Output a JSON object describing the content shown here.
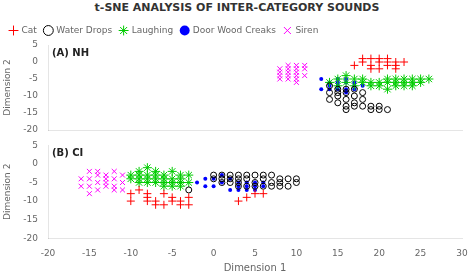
{
  "chart_data": [
    {
      "type": "scatter",
      "title": "t-SNE ANALYSIS OF INTER-CATEGORY SOUNDS",
      "annotations": [
        "(A) NH"
      ],
      "ylabel": "Dimension 2",
      "xlim": [
        -20,
        30
      ],
      "ylim": [
        -20,
        5
      ],
      "xticks": [
        -20,
        -15,
        -10,
        -5,
        0,
        5,
        10,
        15,
        20,
        25,
        30
      ],
      "yticks": [
        -20,
        -15,
        -10,
        -5,
        0,
        5
      ],
      "grid": false,
      "legend": "upper left",
      "tick_labels": "y",
      "series": [
        {
          "name": "Cat",
          "color": "red",
          "marker": "plus",
          "values": [
            [
              18,
              1
            ],
            [
              20,
              1
            ],
            [
              22,
              -1
            ],
            [
              19,
              -1
            ],
            [
              21,
              1
            ],
            [
              20,
              0
            ],
            [
              23,
              0
            ],
            [
              21,
              -1
            ],
            [
              19,
              1
            ],
            [
              22,
              0
            ],
            [
              17,
              -1
            ],
            [
              20,
              -2
            ],
            [
              18,
              0
            ],
            [
              19,
              -2
            ],
            [
              22,
              -2
            ],
            [
              21,
              0
            ]
          ]
        },
        {
          "name": "Water Drops",
          "color": "black",
          "marker": "circle",
          "values": [
            [
              14,
              -7
            ],
            [
              15,
              -8
            ],
            [
              16,
              -9
            ],
            [
              14,
              -9
            ],
            [
              15,
              -10
            ],
            [
              16,
              -11
            ],
            [
              15,
              -12
            ],
            [
              16,
              -13
            ],
            [
              17,
              -10
            ],
            [
              18,
              -11
            ],
            [
              17,
              -12
            ],
            [
              18,
              -13
            ],
            [
              19,
              -13
            ],
            [
              19,
              -14
            ],
            [
              20,
              -13
            ],
            [
              20,
              -14
            ],
            [
              21,
              -14
            ],
            [
              17,
              -8
            ],
            [
              16,
              -8
            ],
            [
              15,
              -9
            ],
            [
              14,
              -11
            ],
            [
              16,
              -14
            ],
            [
              17,
              -13
            ],
            [
              18,
              -9
            ]
          ]
        },
        {
          "name": "Laughing",
          "color": "#00cc00",
          "marker": "star",
          "values": [
            [
              14,
              -6
            ],
            [
              15,
              -5
            ],
            [
              16,
              -4
            ],
            [
              17,
              -5
            ],
            [
              18,
              -6
            ],
            [
              19,
              -7
            ],
            [
              20,
              -6
            ],
            [
              15,
              -7
            ],
            [
              16,
              -6
            ],
            [
              17,
              -7
            ],
            [
              18,
              -5
            ],
            [
              19,
              -6
            ],
            [
              20,
              -7
            ],
            [
              21,
              -6
            ],
            [
              22,
              -5
            ],
            [
              23,
              -6
            ],
            [
              24,
              -5
            ],
            [
              22,
              -7
            ],
            [
              21,
              -8
            ],
            [
              23,
              -7
            ],
            [
              24,
              -6
            ],
            [
              25,
              -5
            ],
            [
              26,
              -5
            ],
            [
              25,
              -6
            ],
            [
              24,
              -7
            ],
            [
              23,
              -5
            ],
            [
              22,
              -6
            ],
            [
              21,
              -5
            ]
          ]
        },
        {
          "name": "Door Wood Creaks",
          "color": "blue",
          "marker": "dot",
          "values": [
            [
              13,
              -5
            ],
            [
              14,
              -6
            ],
            [
              15,
              -7
            ],
            [
              16,
              -6
            ],
            [
              17,
              -7
            ],
            [
              15,
              -6
            ],
            [
              16,
              -5
            ],
            [
              14,
              -7
            ],
            [
              15,
              -8
            ],
            [
              16,
              -9
            ],
            [
              17,
              -8
            ],
            [
              18,
              -7
            ],
            [
              13,
              -8
            ],
            [
              14,
              -8
            ],
            [
              16,
              -8
            ],
            [
              17,
              -6
            ],
            [
              15,
              -5
            ]
          ]
        },
        {
          "name": "Siren",
          "color": "magenta",
          "marker": "x",
          "values": [
            [
              8,
              -2
            ],
            [
              9,
              -1
            ],
            [
              10,
              -1
            ],
            [
              9,
              -3
            ],
            [
              10,
              -4
            ],
            [
              11,
              -2
            ],
            [
              10,
              -2
            ],
            [
              8,
              -4
            ],
            [
              9,
              -5
            ],
            [
              10,
              -6
            ],
            [
              8,
              -3
            ],
            [
              11,
              -1
            ],
            [
              9,
              -2
            ],
            [
              10,
              -3
            ],
            [
              11,
              -4
            ],
            [
              8,
              -5
            ],
            [
              9,
              -4
            ],
            [
              10,
              -5
            ]
          ]
        }
      ]
    },
    {
      "type": "scatter",
      "annotations": [
        "(B) CI"
      ],
      "xlabel": "Dimension 1",
      "ylabel": "Dimension 2",
      "xlim": [
        -20,
        30
      ],
      "ylim": [
        -20,
        5
      ],
      "xticks": [
        -20,
        -15,
        -10,
        -5,
        0,
        5,
        10,
        15,
        20,
        25,
        30
      ],
      "yticks": [
        -20,
        -15,
        -10,
        -5,
        0,
        5
      ],
      "grid": false,
      "series": [
        {
          "name": "Cat",
          "color": "red",
          "marker": "plus",
          "values": [
            [
              -10,
              -8
            ],
            [
              -9,
              -7
            ],
            [
              -8,
              -9
            ],
            [
              -7,
              -10
            ],
            [
              -6,
              -8
            ],
            [
              -5,
              -9
            ],
            [
              -4,
              -11
            ],
            [
              -3,
              -9
            ],
            [
              -7,
              -11
            ],
            [
              -8,
              -10
            ],
            [
              -6,
              -11
            ],
            [
              -5,
              -10
            ],
            [
              -4,
              -10
            ],
            [
              -3,
              -11
            ],
            [
              -10,
              -10
            ],
            [
              -8,
              -8
            ],
            [
              5,
              -8
            ],
            [
              4,
              -9
            ],
            [
              3,
              -10
            ],
            [
              6,
              -8
            ]
          ]
        },
        {
          "name": "Water Drops",
          "color": "black",
          "marker": "circle",
          "values": [
            [
              -3,
              -7
            ],
            [
              0,
              -3
            ],
            [
              1,
              -4
            ],
            [
              2,
              -5
            ],
            [
              3,
              -3
            ],
            [
              4,
              -4
            ],
            [
              5,
              -3
            ],
            [
              3,
              -6
            ],
            [
              2,
              -4
            ],
            [
              1,
              -5
            ],
            [
              0,
              -4
            ],
            [
              4,
              -6
            ],
            [
              5,
              -5
            ],
            [
              3,
              -4
            ],
            [
              2,
              -3
            ],
            [
              1,
              -3
            ],
            [
              6,
              -4
            ],
            [
              7,
              -3
            ],
            [
              7,
              -5
            ],
            [
              6,
              -6
            ],
            [
              7,
              -6
            ],
            [
              8,
              -4
            ],
            [
              8,
              -5
            ],
            [
              6,
              -3
            ],
            [
              5,
              -6
            ],
            [
              4,
              -3
            ],
            [
              3,
              -5
            ],
            [
              8,
              -6
            ],
            [
              9,
              -4
            ],
            [
              9,
              -6
            ],
            [
              10,
              -4
            ],
            [
              10,
              -5
            ]
          ]
        },
        {
          "name": "Laughing",
          "color": "#00cc00",
          "marker": "star",
          "values": [
            [
              -9,
              -2
            ],
            [
              -8,
              -1
            ],
            [
              -7,
              -3
            ],
            [
              -6,
              -4
            ],
            [
              -5,
              -2
            ],
            [
              -4,
              -3
            ],
            [
              -8,
              -4
            ],
            [
              -7,
              -2
            ],
            [
              -6,
              -3
            ],
            [
              -5,
              -4
            ],
            [
              -4,
              -4
            ],
            [
              -3,
              -3
            ],
            [
              -9,
              -4
            ],
            [
              -8,
              -3
            ],
            [
              -7,
              -4
            ],
            [
              -6,
              -5
            ],
            [
              -5,
              -5
            ],
            [
              -4,
              -5
            ],
            [
              -3,
              -5
            ],
            [
              -10,
              -3
            ],
            [
              -9,
              -5
            ],
            [
              -8,
              -5
            ],
            [
              -7,
              -5
            ],
            [
              -6,
              -6
            ],
            [
              -5,
              -6
            ],
            [
              -4,
              -6
            ],
            [
              -10,
              -4
            ],
            [
              -9,
              -3
            ]
          ]
        },
        {
          "name": "Door Wood Creaks",
          "color": "blue",
          "marker": "dot",
          "values": [
            [
              -2,
              -5
            ],
            [
              -1,
              -4
            ],
            [
              0,
              -6
            ],
            [
              1,
              -5
            ],
            [
              2,
              -4
            ],
            [
              3,
              -5
            ],
            [
              0,
              -4
            ],
            [
              1,
              -3
            ],
            [
              2,
              -7
            ],
            [
              -1,
              -6
            ],
            [
              3,
              -6
            ],
            [
              4,
              -5
            ],
            [
              4,
              -6
            ],
            [
              5,
              -5
            ],
            [
              5,
              -6
            ],
            [
              5,
              -7
            ],
            [
              4,
              -7
            ],
            [
              6,
              -5
            ],
            [
              6,
              -6
            ],
            [
              3,
              -7
            ]
          ]
        },
        {
          "name": "Siren",
          "color": "magenta",
          "marker": "x",
          "values": [
            [
              -15,
              -4
            ],
            [
              -14,
              -3
            ],
            [
              -13,
              -5
            ],
            [
              -12,
              -4
            ],
            [
              -11,
              -3
            ],
            [
              -15,
              -6
            ],
            [
              -14,
              -7
            ],
            [
              -13,
              -4
            ],
            [
              -12,
              -6
            ],
            [
              -11,
              -5
            ],
            [
              -15,
              -2
            ],
            [
              -14,
              -5
            ],
            [
              -13,
              -3
            ],
            [
              -12,
              -2
            ],
            [
              -16,
              -4
            ],
            [
              -16,
              -6
            ],
            [
              -15,
              -8
            ],
            [
              -14,
              -2
            ],
            [
              -13,
              -6
            ],
            [
              -12,
              -7
            ],
            [
              -11,
              -7
            ]
          ]
        }
      ]
    }
  ]
}
